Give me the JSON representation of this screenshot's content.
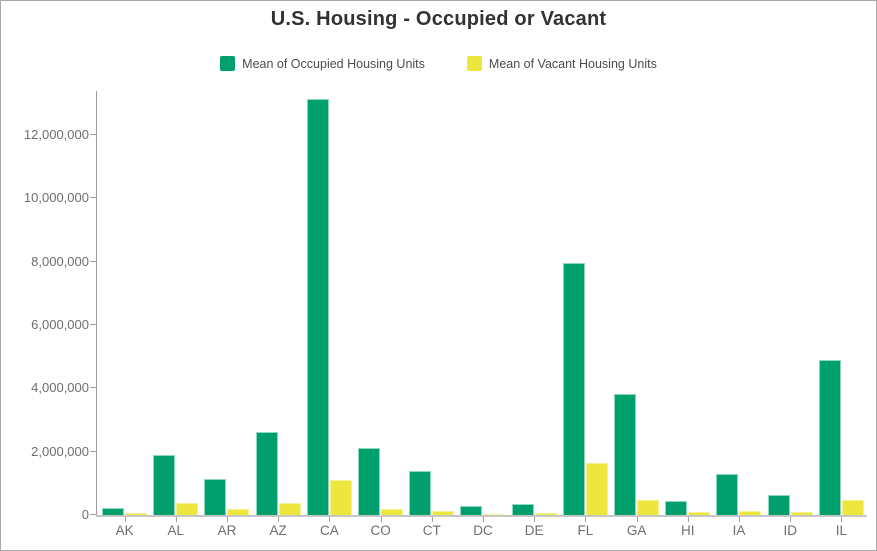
{
  "frame": {
    "title": "U.S. Housing - Occupied or Vacant"
  },
  "chart_data": {
    "type": "bar",
    "title": "U.S. Housing - Occupied or Vacant",
    "categories": [
      "AK",
      "AL",
      "AR",
      "AZ",
      "CA",
      "CO",
      "CT",
      "DC",
      "DE",
      "FL",
      "GA",
      "HI",
      "IA",
      "ID",
      "IL"
    ],
    "series": [
      {
        "name": "Mean of Occupied Housing Units",
        "color": "#00a06e",
        "edge_color": "#8ed9bc",
        "values": [
          230000,
          1880000,
          1150000,
          2620000,
          13150000,
          2130000,
          1380000,
          270000,
          360000,
          7950000,
          3820000,
          450000,
          1280000,
          640000,
          4900000
        ]
      },
      {
        "name": "Mean of Vacant Housing Units",
        "color": "#ede63f",
        "edge_color": "#f6f194",
        "values": [
          55000,
          380000,
          180000,
          390000,
          1090000,
          200000,
          130000,
          40000,
          60000,
          1640000,
          480000,
          90000,
          130000,
          80000,
          470000
        ]
      }
    ],
    "xlabel": "",
    "ylabel": "",
    "ylim": [
      0,
      13400000
    ],
    "y_ticks": [
      0,
      2000000,
      4000000,
      6000000,
      8000000,
      10000000,
      12000000
    ],
    "y_tick_labels": [
      "0",
      "2,000,000",
      "4,000,000",
      "6,000,000",
      "8,000,000",
      "10,000,000",
      "12,000,000"
    ],
    "grid": false,
    "legend_position": "top-center"
  },
  "colors": {
    "title_text": "#323232",
    "legend_text": "#4c4c4c",
    "axis_text": "#6e6e6e",
    "axis_line": "#9e9e9e",
    "baseline": "#c6c6c6",
    "frame_border": "#a9a9a9"
  }
}
